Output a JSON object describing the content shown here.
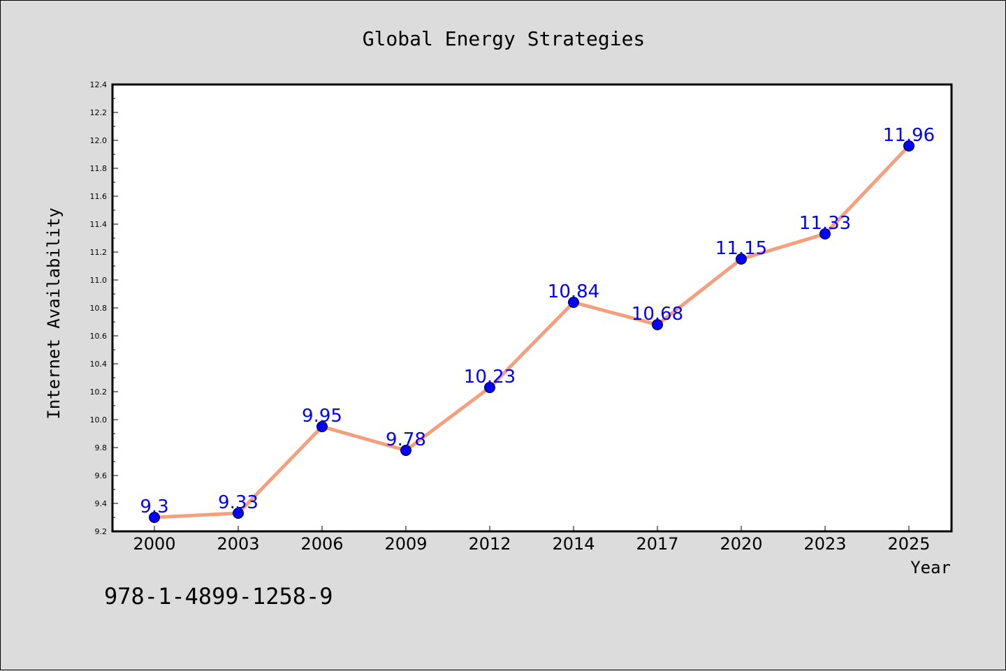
{
  "chart_data": {
    "type": "line",
    "title": "Global Energy Strategies",
    "xlabel": "Year",
    "ylabel": "Internet Availability",
    "categories": [
      "2000",
      "2003",
      "2006",
      "2009",
      "2012",
      "2014",
      "2017",
      "2020",
      "2023",
      "2025"
    ],
    "series": [
      {
        "values": [
          9.3,
          9.33,
          9.95,
          9.78,
          10.23,
          10.84,
          10.68,
          11.15,
          11.33,
          11.96
        ],
        "data_labels": [
          "9.3",
          "9.33",
          "9.95",
          "9.78",
          "10.23",
          "10.84",
          "10.68",
          "11.15",
          "11.33",
          "11.96"
        ],
        "line_color": "#f4a07e",
        "marker_color": "#0000ff"
      }
    ],
    "ylim": [
      9.2,
      12.4
    ],
    "yticks": [
      "9.2",
      "9.4",
      "9.6",
      "9.8",
      "10.0",
      "10.2",
      "10.4",
      "10.6",
      "10.8",
      "11.0",
      "11.2",
      "11.4",
      "11.6",
      "11.8",
      "12.0",
      "12.2",
      "12.4"
    ],
    "grid": false,
    "legend": "none"
  },
  "footer": {
    "isbn": "978-1-4899-1258-9"
  },
  "colors": {
    "background": "#dcdcdc",
    "plot_background": "#ffffff",
    "label_color": "#0000ff"
  }
}
